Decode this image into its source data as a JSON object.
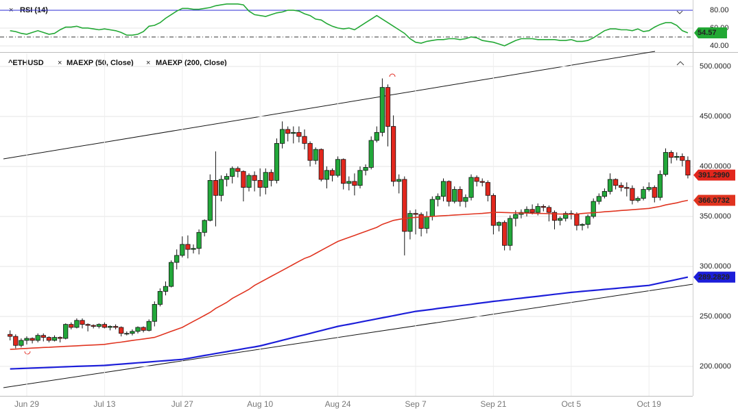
{
  "chart_data": [
    {
      "type": "line",
      "title": "RSI (14)",
      "color": "#22a834",
      "values": [
        57,
        56,
        54,
        53,
        55,
        57,
        55,
        53,
        54,
        58,
        61,
        61,
        62,
        60,
        60,
        59,
        58,
        59,
        58,
        57,
        55,
        52,
        52,
        53,
        56,
        62,
        63,
        66,
        71,
        75,
        79,
        82,
        82,
        81,
        81,
        82,
        83,
        85,
        86,
        87,
        87,
        87,
        86,
        79,
        75,
        74,
        73,
        75,
        77,
        78,
        80,
        80,
        79,
        76,
        74,
        70,
        69,
        65,
        62,
        60,
        59,
        60,
        58,
        62,
        66,
        70,
        74,
        70,
        66,
        62,
        58,
        54,
        48,
        44,
        43,
        45,
        46,
        47,
        47,
        48,
        48,
        47,
        48,
        50,
        49,
        46,
        45,
        44,
        42,
        40,
        43,
        46,
        48,
        48,
        48,
        47,
        47,
        47,
        47,
        46,
        46,
        47,
        45,
        45,
        46,
        49,
        53,
        57,
        59,
        59,
        58,
        58,
        57,
        59,
        56,
        57,
        61,
        64,
        66,
        66,
        63,
        57,
        54.57
      ],
      "ylim": [
        33.8,
        91.5
      ],
      "yticks": [
        {
          "value": 80,
          "label": "80.00"
        },
        {
          "value": 60,
          "label": "60.00"
        },
        {
          "value": 40,
          "label": "40.00"
        }
      ],
      "overbought": 80,
      "overbought_color": "#2b2bd6",
      "midline": 50,
      "last_value": 54.57
    },
    {
      "type": "candlestick",
      "title": "^ETHUSD",
      "categories": [
        null,
        null,
        null,
        "Jun 29",
        null,
        null,
        null,
        null,
        null,
        null,
        null,
        null,
        null,
        null,
        null,
        null,
        null,
        "Jul 13",
        null,
        null,
        null,
        null,
        null,
        null,
        null,
        null,
        null,
        null,
        null,
        null,
        null,
        "Jul 27",
        null,
        null,
        null,
        null,
        null,
        null,
        null,
        null,
        null,
        null,
        null,
        null,
        null,
        "Aug 10",
        null,
        null,
        null,
        null,
        null,
        null,
        null,
        null,
        null,
        null,
        null,
        null,
        null,
        "Aug 24",
        null,
        null,
        null,
        null,
        null,
        null,
        null,
        null,
        null,
        null,
        null,
        null,
        null,
        "Sep 7",
        null,
        null,
        null,
        null,
        null,
        null,
        null,
        null,
        null,
        null,
        null,
        null,
        null,
        "Sep 21",
        null,
        null,
        null,
        null,
        null,
        null,
        null,
        null,
        null,
        null,
        null,
        null,
        null,
        "Oct 5",
        null,
        null,
        null,
        null,
        null,
        null,
        null,
        null,
        null,
        null,
        null,
        null,
        null,
        "Oct 19",
        null,
        null,
        null,
        null,
        null,
        null,
        null
      ],
      "ohlc": [
        [
          232,
          236,
          226,
          230
        ],
        [
          230,
          232,
          218,
          221
        ],
        [
          221,
          228,
          219,
          226
        ],
        [
          226,
          230,
          222,
          228
        ],
        [
          228,
          229,
          223,
          226
        ],
        [
          226,
          233,
          224,
          231
        ],
        [
          231,
          233,
          225,
          229
        ],
        [
          229,
          230,
          224,
          226
        ],
        [
          226,
          231,
          225,
          229
        ],
        [
          229,
          230,
          224,
          228
        ],
        [
          228,
          243,
          227,
          242
        ],
        [
          242,
          244,
          237,
          239
        ],
        [
          239,
          248,
          238,
          246
        ],
        [
          246,
          248,
          238,
          242
        ],
        [
          242,
          243,
          235,
          241
        ],
        [
          241,
          242,
          238,
          240
        ],
        [
          240,
          243,
          238,
          242
        ],
        [
          242,
          244,
          238,
          239
        ],
        [
          239,
          241,
          236,
          240
        ],
        [
          240,
          242,
          237,
          239
        ],
        [
          239,
          240,
          230,
          233
        ],
        [
          233,
          235,
          231,
          233
        ],
        [
          233,
          237,
          231,
          235
        ],
        [
          235,
          240,
          233,
          239
        ],
        [
          239,
          240,
          234,
          236
        ],
        [
          236,
          247,
          235,
          245
        ],
        [
          245,
          265,
          240,
          262
        ],
        [
          262,
          278,
          260,
          275
        ],
        [
          275,
          285,
          271,
          280
        ],
        [
          280,
          306,
          279,
          304
        ],
        [
          304,
          317,
          297,
          311
        ],
        [
          311,
          330,
          309,
          322
        ],
        [
          322,
          331,
          308,
          317
        ],
        [
          317,
          322,
          313,
          318
        ],
        [
          318,
          337,
          312,
          334
        ],
        [
          334,
          347,
          330,
          346
        ],
        [
          346,
          392,
          345,
          386
        ],
        [
          386,
          415,
          340,
          371
        ],
        [
          371,
          391,
          365,
          387
        ],
        [
          387,
          393,
          380,
          390
        ],
        [
          390,
          400,
          383,
          398
        ],
        [
          398,
          400,
          389,
          395
        ],
        [
          395,
          396,
          365,
          379
        ],
        [
          379,
          393,
          375,
          391
        ],
        [
          391,
          395,
          375,
          386
        ],
        [
          386,
          398,
          370,
          379
        ],
        [
          379,
          398,
          372,
          394
        ],
        [
          394,
          397,
          380,
          386
        ],
        [
          386,
          428,
          383,
          423
        ],
        [
          423,
          445,
          418,
          437
        ],
        [
          437,
          440,
          425,
          433
        ],
        [
          433,
          440,
          423,
          434
        ],
        [
          434,
          440,
          424,
          430
        ],
        [
          430,
          437,
          417,
          423
        ],
        [
          423,
          425,
          400,
          406
        ],
        [
          406,
          419,
          402,
          417
        ],
        [
          417,
          418,
          385,
          387
        ],
        [
          387,
          400,
          378,
          396
        ],
        [
          396,
          398,
          385,
          391
        ],
        [
          391,
          410,
          389,
          407
        ],
        [
          407,
          408,
          377,
          383
        ],
        [
          383,
          390,
          376,
          385
        ],
        [
          385,
          393,
          371,
          381
        ],
        [
          381,
          400,
          378,
          396
        ],
        [
          396,
          402,
          391,
          399
        ],
        [
          399,
          430,
          397,
          426
        ],
        [
          426,
          440,
          424,
          434
        ],
        [
          434,
          488,
          430,
          479
        ],
        [
          479,
          482,
          420,
          440
        ],
        [
          440,
          451,
          380,
          385
        ],
        [
          385,
          392,
          373,
          387
        ],
        [
          387,
          390,
          311,
          335
        ],
        [
          335,
          356,
          327,
          353
        ],
        [
          353,
          357,
          332,
          352
        ],
        [
          352,
          354,
          330,
          338
        ],
        [
          338,
          355,
          333,
          350
        ],
        [
          350,
          370,
          346,
          367
        ],
        [
          367,
          373,
          360,
          370
        ],
        [
          370,
          388,
          365,
          385
        ],
        [
          385,
          386,
          360,
          365
        ],
        [
          365,
          380,
          363,
          377
        ],
        [
          377,
          380,
          360,
          365
        ],
        [
          365,
          372,
          359,
          369
        ],
        [
          369,
          392,
          366,
          389
        ],
        [
          389,
          391,
          380,
          385
        ],
        [
          385,
          388,
          380,
          384
        ],
        [
          384,
          386,
          365,
          371
        ],
        [
          371,
          373,
          332,
          341
        ],
        [
          341,
          345,
          335,
          344
        ],
        [
          344,
          346,
          316,
          321
        ],
        [
          321,
          351,
          316,
          348
        ],
        [
          348,
          356,
          340,
          352
        ],
        [
          352,
          357,
          348,
          354
        ],
        [
          354,
          360,
          350,
          357
        ],
        [
          357,
          362,
          352,
          354
        ],
        [
          354,
          363,
          351,
          360
        ],
        [
          360,
          362,
          355,
          359
        ],
        [
          359,
          361,
          345,
          354
        ],
        [
          354,
          356,
          337,
          346
        ],
        [
          346,
          350,
          341,
          348
        ],
        [
          348,
          355,
          345,
          353
        ],
        [
          353,
          356,
          347,
          352
        ],
        [
          352,
          354,
          336,
          341
        ],
        [
          341,
          343,
          336,
          342
        ],
        [
          342,
          352,
          338,
          350
        ],
        [
          350,
          368,
          348,
          365
        ],
        [
          365,
          373,
          362,
          370
        ],
        [
          370,
          378,
          368,
          375
        ],
        [
          375,
          393,
          372,
          387
        ],
        [
          387,
          388,
          377,
          381
        ],
        [
          381,
          384,
          375,
          379
        ],
        [
          379,
          384,
          370,
          378
        ],
        [
          378,
          381,
          362,
          366
        ],
        [
          366,
          370,
          364,
          368
        ],
        [
          368,
          380,
          366,
          377
        ],
        [
          377,
          384,
          375,
          379
        ],
        [
          379,
          381,
          364,
          369
        ],
        [
          369,
          396,
          366,
          392
        ],
        [
          392,
          418,
          390,
          414
        ],
        [
          414,
          416,
          403,
          409
        ],
        [
          409,
          414,
          406,
          410
        ],
        [
          410,
          413,
          400,
          406
        ],
        [
          406,
          410,
          388,
          391.299
        ]
      ],
      "up_color": "#22a83a",
      "down_color": "#e2271d",
      "series": [
        {
          "name": "MAEXP (50, Close)",
          "color": "#e0331f",
          "values": [
            217,
            217.3,
            217.7,
            218,
            218.3,
            218.6,
            218.9,
            219.1,
            219.4,
            219.7,
            220,
            220.3,
            220.6,
            220.9,
            221.1,
            221.4,
            221.7,
            222,
            222.8,
            223.6,
            224.3,
            225.1,
            225.9,
            226.7,
            227.4,
            228.2,
            229,
            231,
            233,
            235,
            237,
            239,
            242,
            245,
            248,
            251,
            254,
            258,
            261,
            264,
            268,
            271,
            274,
            277,
            281,
            284,
            287,
            290,
            293,
            296,
            299,
            302,
            305,
            308,
            310,
            313,
            316,
            319,
            322,
            325,
            327,
            329,
            331,
            333,
            335,
            337,
            339,
            342,
            344,
            346,
            347,
            348,
            348.5,
            349,
            349.4,
            349.7,
            350,
            350.4,
            350.7,
            351,
            351.4,
            351.7,
            352,
            352.4,
            352.7,
            353,
            353.5,
            354,
            354,
            353.9,
            353.7,
            353.6,
            353.4,
            353.3,
            353.1,
            353,
            352.9,
            352.7,
            352.6,
            352.4,
            352.3,
            352,
            352.4,
            352.9,
            353.3,
            353.7,
            354.1,
            354.6,
            355,
            355.4,
            355.9,
            356.3,
            356.7,
            357.1,
            357.6,
            358,
            359,
            360,
            361.5,
            362.5,
            363.5,
            365,
            366.0732
          ]
        },
        {
          "name": "MAEXP (200, Close)",
          "color": "#1c1ed9",
          "values": [
            197.5,
            197.7,
            197.9,
            198.1,
            198.3,
            198.5,
            198.7,
            198.9,
            199.1,
            199.4,
            199.6,
            199.8,
            200,
            200.2,
            200.4,
            200.6,
            200.8,
            201,
            201.4,
            201.9,
            202.3,
            202.7,
            203.1,
            203.6,
            204,
            204.4,
            204.9,
            205.3,
            205.7,
            206.1,
            206.6,
            207,
            208,
            208.9,
            209.9,
            210.9,
            211.8,
            212.8,
            213.8,
            214.7,
            215.7,
            216.6,
            217.6,
            218.6,
            219.5,
            220.5,
            221.9,
            223.3,
            224.7,
            226.1,
            227.5,
            228.9,
            230.3,
            231.6,
            233,
            234.4,
            235.8,
            237.2,
            238.6,
            240,
            241.1,
            242.1,
            243.2,
            244.3,
            245.4,
            246.4,
            247.5,
            248.6,
            249.6,
            250.7,
            251.8,
            252.9,
            253.9,
            255,
            255.7,
            256.4,
            257.1,
            257.9,
            258.6,
            259.3,
            260,
            260.7,
            261.4,
            262.1,
            262.9,
            263.6,
            264.3,
            265,
            265.6,
            266.3,
            266.9,
            267.6,
            268.2,
            268.9,
            269.5,
            270.1,
            270.8,
            271.4,
            272.1,
            272.7,
            273.4,
            274,
            274.5,
            275,
            275.5,
            276,
            276.5,
            277,
            277.5,
            278,
            278.5,
            279,
            279.5,
            280,
            280.5,
            281,
            282.2,
            283.4,
            284.6,
            285.7,
            286.9,
            288.1,
            289.2829
          ]
        }
      ],
      "ylim": [
        170.5,
        513
      ],
      "yticks": [
        {
          "value": 200,
          "label": "200.0000"
        },
        {
          "value": 250,
          "label": "250.0000"
        },
        {
          "value": 300,
          "label": "300.0000"
        },
        {
          "value": 350,
          "label": "350.0000"
        },
        {
          "value": 400,
          "label": "400.0000"
        },
        {
          "value": 450,
          "label": "450.0000"
        },
        {
          "value": 500,
          "label": "500.0000"
        }
      ],
      "price_labels": [
        {
          "value": 391.299,
          "label": "391.2990",
          "color": "#e2271d"
        },
        {
          "value": 366.0732,
          "label": "366.0732",
          "color": "#e0331f"
        },
        {
          "value": 289.2829,
          "label": "289.2829",
          "color": "#1c1ed9"
        }
      ]
    }
  ]
}
